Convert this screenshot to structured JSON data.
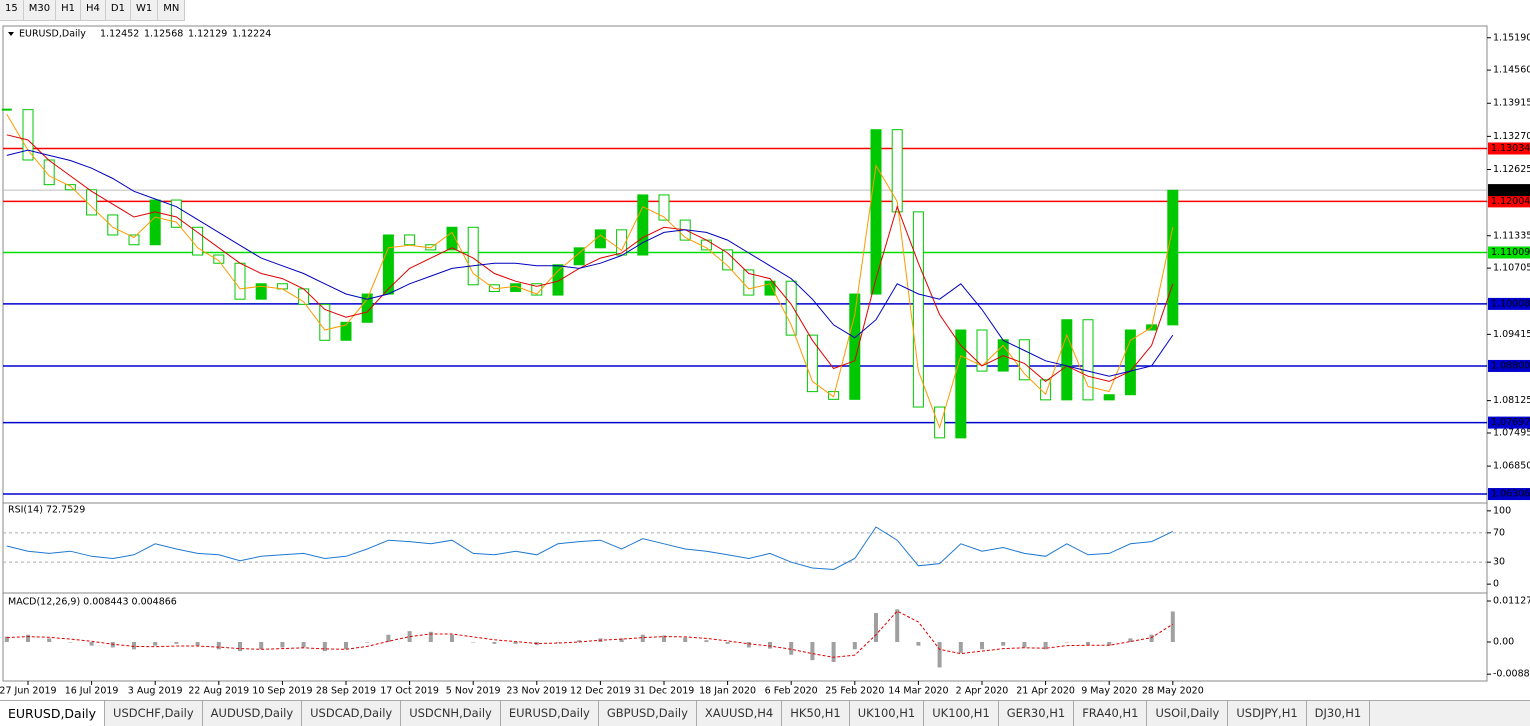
{
  "toolbar": {
    "timeframes": [
      "15",
      "M30",
      "H1",
      "H4",
      "D1",
      "W1",
      "MN"
    ]
  },
  "chart_data": [
    {
      "type": "candlestick",
      "title": "EURUSD,Daily",
      "last_bar": {
        "open": 1.12452,
        "high": 1.12568,
        "low": 1.12129,
        "close": 1.12224
      },
      "categories": [
        null,
        "27 Jun 2019",
        null,
        null,
        "16 Jul 2019",
        null,
        null,
        "3 Aug 2019",
        null,
        null,
        "22 Aug 2019",
        null,
        null,
        "10 Sep 2019",
        null,
        null,
        "28 Sep 2019",
        null,
        null,
        "17 Oct 2019",
        null,
        null,
        "5 Nov 2019",
        null,
        null,
        "23 Nov 2019",
        null,
        null,
        "12 Dec 2019",
        null,
        null,
        "31 Dec 2019",
        null,
        null,
        "18 Jan 2020",
        null,
        null,
        "6 Feb 2020",
        null,
        null,
        "25 Feb 2020",
        null,
        null,
        "14 Mar 2020",
        null,
        null,
        "2 Apr 2020",
        null,
        null,
        "21 Apr 2020",
        null,
        null,
        "9 May 2020",
        null,
        null,
        "28 May 2020"
      ],
      "color": "#00c800",
      "values": [
        1.1379,
        1.1281,
        1.1233,
        1.1223,
        1.1174,
        1.1135,
        1.1116,
        1.1203,
        1.115,
        1.1096,
        1.108,
        1.101,
        1.104,
        1.103,
        1.1,
        1.093,
        1.0965,
        1.102,
        1.1135,
        1.1116,
        1.1106,
        1.115,
        1.1038,
        1.1025,
        1.104,
        1.1018,
        1.1077,
        1.111,
        1.1145,
        1.1096,
        1.1213,
        1.1164,
        1.1125,
        1.1106,
        1.1067,
        1.1018,
        1.1045,
        1.094,
        1.083,
        1.0815,
        1.102,
        1.134,
        1.118,
        1.08,
        1.074,
        1.095,
        1.087,
        1.0931,
        1.0853,
        1.0814,
        1.097,
        1.0814,
        1.0824,
        1.095,
        1.096,
        1.1222
      ],
      "overlays": [
        {
          "color": "#ff9900",
          "values": [
            1.137,
            1.13,
            1.125,
            1.123,
            1.119,
            1.115,
            1.113,
            1.117,
            1.116,
            1.111,
            1.1085,
            1.103,
            1.1035,
            1.103,
            1.1005,
            1.095,
            1.096,
            1.101,
            1.111,
            1.1115,
            1.111,
            1.114,
            1.106,
            1.103,
            1.1035,
            1.102,
            1.1065,
            1.11,
            1.1135,
            1.1105,
            1.119,
            1.117,
            1.113,
            1.111,
            1.1075,
            1.103,
            1.104,
            1.096,
            1.085,
            1.082,
            1.098,
            1.127,
            1.12,
            1.087,
            1.076,
            1.09,
            1.088,
            1.092,
            1.0865,
            1.0825,
            1.094,
            1.084,
            1.083,
            1.093,
            1.0955,
            1.115
          ]
        },
        {
          "color": "#e00000",
          "values": [
            1.133,
            1.132,
            1.128,
            1.125,
            1.122,
            1.1195,
            1.117,
            1.118,
            1.117,
            1.114,
            1.111,
            1.108,
            1.106,
            1.105,
            1.103,
            1.099,
            1.0975,
            1.0985,
            1.103,
            1.107,
            1.109,
            1.111,
            1.109,
            1.106,
            1.1045,
            1.1035,
            1.1045,
            1.107,
            1.109,
            1.11,
            1.113,
            1.115,
            1.1145,
            1.1125,
            1.11,
            1.106,
            1.105,
            1.1,
            1.093,
            1.0875,
            1.089,
            1.105,
            1.119,
            1.108,
            1.098,
            1.092,
            1.088,
            1.09,
            1.0885,
            1.085,
            1.088,
            1.086,
            1.085,
            1.087,
            1.092,
            1.104
          ]
        },
        {
          "color": "#0000c0",
          "values": [
            1.129,
            1.13,
            1.129,
            1.128,
            1.1265,
            1.1245,
            1.122,
            1.1205,
            1.119,
            1.1165,
            1.114,
            1.1115,
            1.109,
            1.1075,
            1.106,
            1.104,
            1.102,
            1.101,
            1.102,
            1.104,
            1.1055,
            1.107,
            1.1075,
            1.108,
            1.108,
            1.1075,
            1.1075,
            1.107,
            1.108,
            1.1095,
            1.112,
            1.114,
            1.1145,
            1.114,
            1.1125,
            1.11,
            1.1075,
            1.105,
            1.101,
            1.096,
            1.0935,
            1.097,
            1.104,
            1.102,
            1.101,
            1.104,
            1.099,
            1.093,
            1.091,
            1.089,
            1.088,
            1.087,
            1.086,
            1.087,
            1.088,
            1.094
          ]
        }
      ],
      "levels": [
        {
          "value": 1.13034,
          "color": "#ff0000"
        },
        {
          "value": 1.12004,
          "color": "#ff0000"
        },
        {
          "value": 1.11009,
          "color": "#00e000"
        },
        {
          "value": 1.10008,
          "color": "#0000cd"
        },
        {
          "value": 1.088,
          "label": "1.08800",
          "color": "#0000cd"
        },
        {
          "value": 1.07697,
          "color": "#0000cd"
        },
        {
          "value": 1.06306,
          "color": "#0000cd"
        }
      ],
      "ylim": [
        1.0619,
        1.1538
      ],
      "yticks": [
        {
          "value": 1.1519,
          "label": "1.15190"
        },
        {
          "value": 1.1456,
          "label": "1.14560"
        },
        1.13915,
        {
          "value": 1.1327,
          "label": "1.13270"
        },
        1.12625,
        1.11335,
        1.10705,
        1.09415,
        1.08125,
        1.07495,
        {
          "value": 1.0685,
          "label": "1.06850"
        }
      ]
    },
    {
      "type": "line",
      "title": "RSI(14) 72.7529",
      "color": "#1e78d2",
      "values": [
        52,
        45,
        42,
        45,
        38,
        35,
        40,
        55,
        48,
        42,
        40,
        32,
        38,
        40,
        42,
        35,
        38,
        48,
        60,
        58,
        55,
        60,
        42,
        40,
        45,
        40,
        55,
        58,
        60,
        48,
        62,
        55,
        48,
        45,
        40,
        35,
        42,
        30,
        22,
        20,
        35,
        78,
        60,
        25,
        28,
        55,
        45,
        50,
        42,
        38,
        55,
        40,
        42,
        55,
        58,
        72
      ],
      "levels": [
        70,
        30
      ],
      "ylim": [
        -8,
        108
      ],
      "yticks": [
        100,
        70,
        30,
        0
      ]
    },
    {
      "type": "histogram-signal",
      "title": "MACD(12,26,9) 0.008443 0.004866",
      "color": "#a0a0a0",
      "signal_color": "#e00000",
      "values": [
        0.0015,
        0.002,
        0.001,
        0,
        -0.001,
        -0.0015,
        -0.002,
        -0.001,
        -0.0005,
        -0.001,
        -0.002,
        -0.0025,
        -0.002,
        -0.0015,
        -0.0015,
        -0.0025,
        -0.002,
        0,
        0.002,
        0.003,
        0.0028,
        0.002,
        0,
        -0.0005,
        -0.0005,
        -0.0008,
        0,
        0.0005,
        0.001,
        0.001,
        0.002,
        0.0018,
        0.0012,
        0.0005,
        -0.0005,
        -0.0015,
        -0.0018,
        -0.0035,
        -0.005,
        -0.0055,
        -0.002,
        0.008,
        0.009,
        -0.001,
        -0.007,
        -0.003,
        -0.002,
        -0.001,
        -0.0015,
        -0.002,
        0,
        -0.0008,
        -0.001,
        0.001,
        0.002,
        0.0084
      ],
      "signal": [
        0.0012,
        0.0015,
        0.0013,
        0.0008,
        0.0002,
        -0.0006,
        -0.0012,
        -0.0013,
        -0.0011,
        -0.0011,
        -0.0014,
        -0.0018,
        -0.002,
        -0.0018,
        -0.0016,
        -0.0019,
        -0.002,
        -0.0012,
        0.0002,
        0.0015,
        0.0022,
        0.0022,
        0.0014,
        0.0006,
        0.0001,
        -0.0004,
        -0.0003,
        0,
        0.0005,
        0.0008,
        0.0012,
        0.0015,
        0.0014,
        0.001,
        0.0003,
        -0.0005,
        -0.0011,
        -0.002,
        -0.0032,
        -0.0042,
        -0.0036,
        0.002,
        0.0085,
        0.0055,
        -0.002,
        -0.0032,
        -0.0025,
        -0.0018,
        -0.0016,
        -0.0017,
        -0.001,
        -0.0009,
        -0.0009,
        0.0001,
        0.0012,
        0.0049
      ],
      "ylim": [
        -0.01045,
        0.01238
      ],
      "yticks": [
        0.011277,
        {
          "value": 0,
          "label": "0.00"
        },
        -0.008845
      ]
    }
  ],
  "tabs": [
    "EURUSD,Daily",
    "USDCHF,Daily",
    "AUDUSD,Daily",
    "USDCAD,Daily",
    "USDCNH,Daily",
    "EURUSD,Daily",
    "GBPUSD,Daily",
    "XAUUSD,H4",
    "HK50,H1",
    "UK100,H1",
    "UK100,H1",
    "GER30,H1",
    "FRA40,H1",
    "USOil,Daily",
    "USDJPY,H1",
    "DJ30,H1"
  ]
}
